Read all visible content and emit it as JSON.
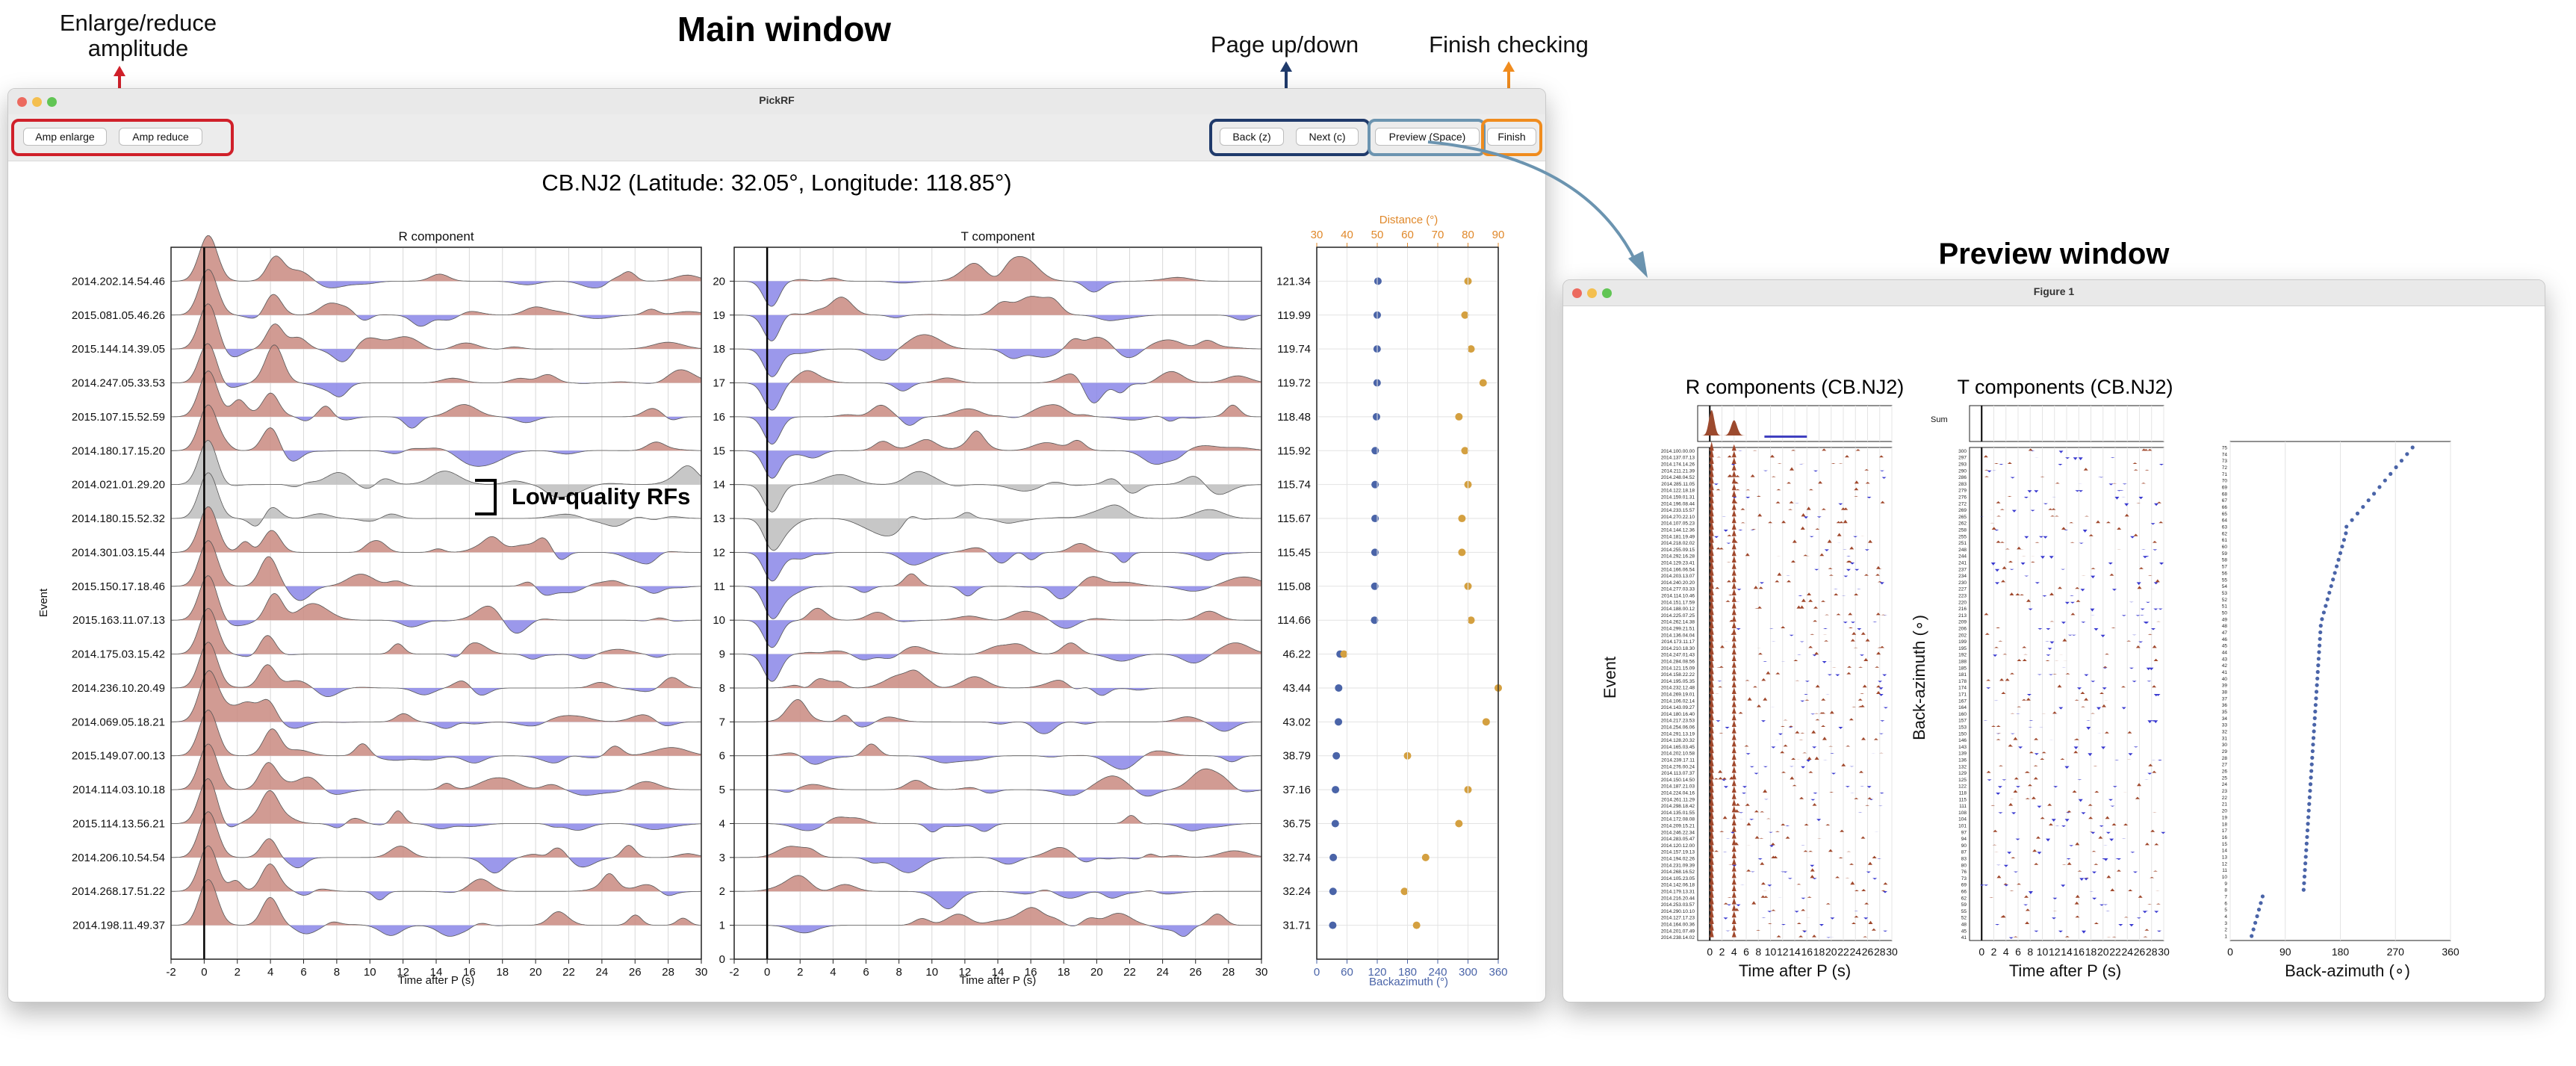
{
  "annotations": {
    "main_title": "Main window",
    "preview_title": "Preview window",
    "amp": "Enlarge/reduce amplitude",
    "page": "Page up/down",
    "finish": "Finish checking",
    "lowq": "Low-quality RFs"
  },
  "colors": {
    "red_box": "#d0202a",
    "navy_box": "#1f3a6b",
    "steel_box": "#6b94b0",
    "orange_box": "#f08c1e",
    "pos_fill": "#c98a80",
    "neg_fill": "#8a86e8",
    "grey_fill": "#bdbdbd",
    "baz_dot": "#4a64a8",
    "dist_dot": "#d4a040"
  },
  "main_window": {
    "title": "PickRF",
    "buttons": {
      "amp_enlarge": "Amp enlarge",
      "amp_reduce": "Amp reduce",
      "back": "Back (z)",
      "next": "Next (c)",
      "preview": "Preview (Space)",
      "finish": "Finish"
    },
    "station_title": "CB.NJ2 (Latitude: 32.05°, Longitude: 118.85°)",
    "r_title": "R component",
    "t_title": "T component",
    "event_label": "Event",
    "xlabel": "Time after P (s)",
    "dist_label": "Distance (°)",
    "baz_label": "Backazimuth (°)"
  },
  "preview_window": {
    "title": "Figure 1",
    "r_title": "R components (CB.NJ2)",
    "t_title": "T components (CB.NJ2)",
    "sum_label": "Sum",
    "event_label": "Event",
    "baz_axis_label": "Back-azimuth (∘)",
    "xlabel": "Time after P (s)",
    "baz_xlabel": "Back-azimuth (∘)"
  },
  "chart_data": [
    {
      "type": "line",
      "name_ref": "R component",
      "events": [
        "2014.202.14.54.46",
        "2015.081.05.46.26",
        "2015.144.14.39.05",
        "2014.247.05.33.53",
        "2015.107.15.52.59",
        "2014.180.17.15.20",
        "2014.021.01.29.20",
        "2014.180.15.52.32",
        "2014.301.03.15.44",
        "2015.150.17.18.46",
        "2015.163.11.07.13",
        "2014.175.03.15.42",
        "2014.236.10.20.49",
        "2014.069.05.18.21",
        "2015.149.07.00.13",
        "2014.114.03.10.18",
        "2015.114.13.56.21",
        "2014.206.10.54.54",
        "2014.268.17.51.22",
        "2014.198.11.49.37"
      ],
      "low_quality": [
        "2014.021.01.29.20",
        "2014.180.15.52.32"
      ],
      "x_ticks": [
        -2,
        0,
        2,
        4,
        6,
        8,
        10,
        12,
        14,
        16,
        18,
        20,
        22,
        24,
        26,
        28,
        30
      ],
      "xlim": [
        -2,
        30
      ]
    },
    {
      "type": "line",
      "name_ref": "T component",
      "y_ticks": [
        0,
        1,
        2,
        3,
        4,
        5,
        6,
        7,
        8,
        9,
        10,
        11,
        12,
        13,
        14,
        15,
        16,
        17,
        18,
        19,
        20
      ],
      "x_ticks": [
        -2,
        0,
        2,
        4,
        6,
        8,
        10,
        12,
        14,
        16,
        18,
        20,
        22,
        24,
        26,
        28,
        30
      ],
      "xlim": [
        -2,
        30
      ]
    },
    {
      "type": "scatter",
      "name_ref": "Backazimuth / Distance",
      "baz_values": [
        121.34,
        119.99,
        119.74,
        119.72,
        118.48,
        115.92,
        115.74,
        115.67,
        115.45,
        115.08,
        114.66,
        46.22,
        43.44,
        43.02,
        38.79,
        37.16,
        36.75,
        32.74,
        32.24,
        31.71
      ],
      "dist_values": [
        80,
        79,
        81,
        85,
        77,
        79,
        80,
        78,
        78,
        80,
        81,
        39,
        90,
        86,
        60,
        80,
        77,
        66,
        59,
        63
      ],
      "baz_ticks": [
        0,
        60,
        120,
        180,
        240,
        300,
        360
      ],
      "dist_ticks": [
        30,
        40,
        50,
        60,
        70,
        80,
        90
      ],
      "baz_lim": [
        0,
        360
      ],
      "dist_lim": [
        30,
        90
      ]
    },
    {
      "type": "scatter",
      "name_ref": "Preview back-azimuth",
      "baz_ticks": [
        0,
        90,
        180,
        270,
        360
      ],
      "baz_lim": [
        0,
        360
      ],
      "n_events": 75,
      "x_ticks": [
        0,
        2,
        4,
        6,
        8,
        10,
        12,
        14,
        16,
        18,
        20,
        22,
        24,
        26,
        28,
        30
      ]
    }
  ]
}
